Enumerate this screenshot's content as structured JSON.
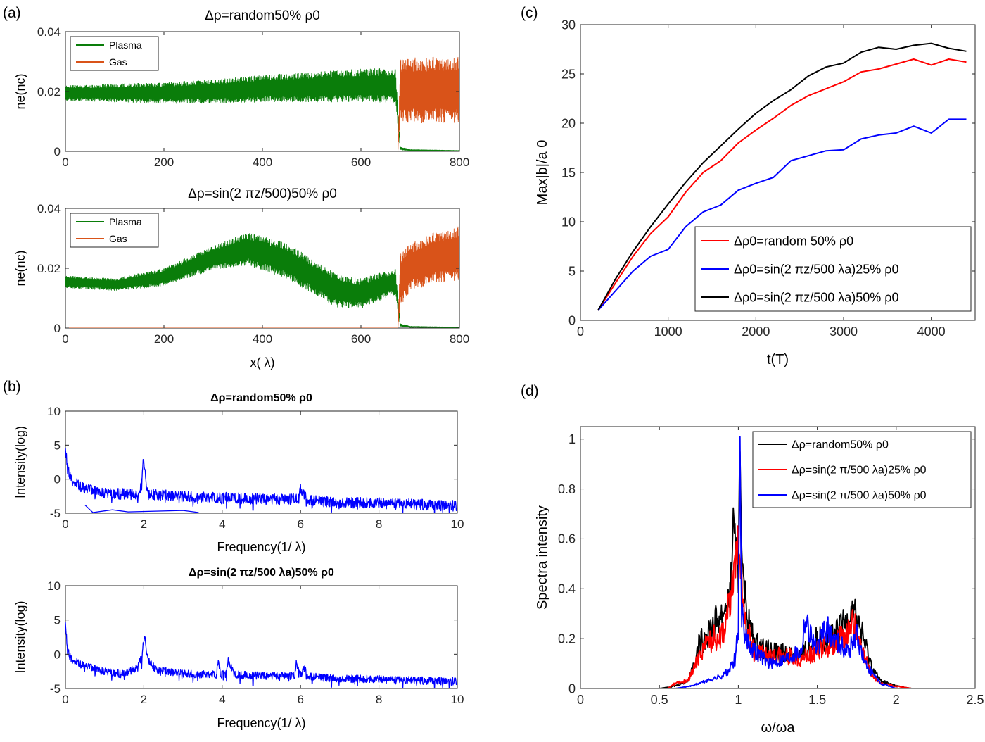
{
  "panel_labels": [
    "(a)",
    "(b)",
    "(c)",
    "(d)"
  ],
  "chart_data": [
    {
      "id": "a1",
      "type": "line",
      "title": "Δρ=random50%   ρ0",
      "xlabel": "",
      "ylabel": "ne(nc)",
      "xlim": [
        0,
        800
      ],
      "ylim": [
        0,
        0.04
      ],
      "xticks": [
        "0",
        "200",
        "400",
        "600",
        "800"
      ],
      "yticks": [
        "0",
        "0.02",
        "0.04"
      ],
      "legend": {
        "position": "top-left",
        "entries": [
          "Plasma",
          "Gas"
        ]
      },
      "series": [
        {
          "name": "Plasma",
          "color": "#0a7d0a",
          "x": [
            0,
            100,
            200,
            300,
            400,
            500,
            600,
            670,
            680,
            700,
            800
          ],
          "y_mid": [
            0.0195,
            0.0195,
            0.0195,
            0.02,
            0.021,
            0.0215,
            0.022,
            0.022,
            0.001,
            0.0004,
            0.0002
          ],
          "y_half_range": [
            0.0025,
            0.003,
            0.0035,
            0.004,
            0.0045,
            0.005,
            0.0055,
            0.0058,
            0.0005,
            0.0002,
            0.0001
          ]
        },
        {
          "name": "Gas",
          "color": "#d95319",
          "x": [
            0,
            675,
            680,
            700,
            800
          ],
          "y_mid": [
            0,
            0,
            0.0205,
            0.0205,
            0.0205
          ],
          "y_half_range": [
            0,
            0,
            0.0105,
            0.011,
            0.011
          ]
        }
      ]
    },
    {
      "id": "a2",
      "type": "line",
      "title": "Δρ=sin(2  πz/500)50%  ρ0",
      "xlabel": "x( λ)",
      "ylabel": "ne(nc)",
      "xlim": [
        0,
        800
      ],
      "ylim": [
        0,
        0.04
      ],
      "xticks": [
        "0",
        "200",
        "400",
        "600",
        "800"
      ],
      "yticks": [
        "0",
        "0.02",
        "0.04"
      ],
      "legend": {
        "position": "top-left",
        "entries": [
          "Plasma",
          "Gas"
        ]
      },
      "series": [
        {
          "name": "Plasma",
          "color": "#0a7d0a",
          "x": [
            0,
            100,
            200,
            300,
            370,
            450,
            550,
            600,
            650,
            670,
            680,
            700,
            800
          ],
          "y_mid": [
            0.0155,
            0.0145,
            0.017,
            0.0235,
            0.0265,
            0.0225,
            0.0125,
            0.0115,
            0.0145,
            0.0155,
            0.001,
            0.0004,
            0.0002
          ],
          "y_half_range": [
            0.002,
            0.002,
            0.003,
            0.004,
            0.0055,
            0.006,
            0.0055,
            0.005,
            0.0045,
            0.0045,
            0.0005,
            0.0002,
            0.0001
          ]
        },
        {
          "name": "Gas",
          "color": "#d95319",
          "x": [
            0,
            675,
            680,
            700,
            750,
            800
          ],
          "y_mid": [
            0,
            0,
            0.016,
            0.0205,
            0.0235,
            0.025
          ],
          "y_half_range": [
            0,
            0,
            0.009,
            0.008,
            0.0085,
            0.009
          ]
        }
      ]
    },
    {
      "id": "b1",
      "type": "line",
      "title": "Δρ=random50%   ρ0",
      "xlabel": "Frequency(1/   λ)",
      "ylabel": "Intensity(log)",
      "xlim": [
        0,
        10
      ],
      "ylim": [
        -5,
        10
      ],
      "xticks": [
        "0",
        "2",
        "4",
        "6",
        "8",
        "10"
      ],
      "yticks": [
        "-5",
        "0",
        "5",
        "10"
      ],
      "series": [
        {
          "name": "",
          "color": "#0000ff",
          "x": [
            0,
            0.05,
            0.2,
            0.5,
            1,
            1.9,
            2.0,
            2.1,
            3,
            4,
            5,
            5.9,
            6.0,
            6.2,
            7,
            8,
            9,
            10
          ],
          "y": [
            4.8,
            1.5,
            -0.5,
            -1.5,
            -2.2,
            -2.3,
            3.0,
            -2.3,
            -2.6,
            -2.8,
            -3.0,
            -3.0,
            -1.5,
            -3.2,
            -3.5,
            -3.6,
            -3.8,
            -4.0
          ],
          "noise": 1.0
        },
        {
          "name": "",
          "color": "#0000ff",
          "x": [
            0.5,
            0.7,
            1.2,
            1.6,
            3.0,
            3.4
          ],
          "y": [
            -3.8,
            -4.9,
            -4.5,
            -4.8,
            -4.6,
            -4.9
          ],
          "noise": 0
        }
      ]
    },
    {
      "id": "b2",
      "type": "line",
      "title": "Δρ=sin(2  πz/500  λa)50%  ρ0",
      "xlabel": "Frequency(1/   λ)",
      "ylabel": "Intensity(log)",
      "xlim": [
        0,
        10
      ],
      "ylim": [
        -5,
        10
      ],
      "xticks": [
        "0",
        "2",
        "4",
        "6",
        "8",
        "10"
      ],
      "yticks": [
        "-5",
        "0",
        "5",
        "10"
      ],
      "series": [
        {
          "name": "",
          "color": "#0000ff",
          "x": [
            0,
            0.05,
            0.2,
            0.5,
            1.0,
            1.5,
            1.8,
            1.95,
            2.02,
            2.1,
            2.3,
            3.0,
            3.85,
            3.9,
            3.95,
            4.1,
            4.15,
            4.3,
            5.0,
            5.85,
            5.9,
            6.0,
            6.1,
            6.2,
            7,
            8,
            9,
            10
          ],
          "y": [
            4.8,
            0.5,
            -1.0,
            -1.8,
            -2.6,
            -3.0,
            -2.0,
            -0.5,
            3.0,
            -0.8,
            -2.3,
            -2.9,
            -3.0,
            -0.7,
            -2.8,
            -3.0,
            -0.9,
            -3.0,
            -3.2,
            -3.2,
            -1.0,
            -3.0,
            -2.0,
            -3.3,
            -3.6,
            -3.7,
            -3.9,
            -4.0
          ],
          "noise": 0.7
        }
      ]
    },
    {
      "id": "c",
      "type": "line",
      "title": "",
      "xlabel": "t(T)",
      "ylabel": "Max|b|/a 0",
      "xlim": [
        0,
        4500
      ],
      "ylim": [
        0,
        30
      ],
      "xticks": [
        "0",
        "1000",
        "2000",
        "3000",
        "4000"
      ],
      "yticks": [
        "0",
        "5",
        "10",
        "15",
        "20",
        "25",
        "30"
      ],
      "legend": {
        "position": "bottom-right",
        "entries": [
          "Δρ0=random 50%    ρ0",
          "Δρ0=sin(2   πz/500  λa)25% ρ0",
          "Δρ0=sin(2   πz/500  λa)50% ρ0"
        ]
      },
      "series": [
        {
          "name": "Δρ0=random 50%    ρ0",
          "color": "#ff0000",
          "x": [
            200,
            400,
            600,
            800,
            1000,
            1200,
            1400,
            1600,
            1800,
            2000,
            2200,
            2400,
            2600,
            2800,
            3000,
            3200,
            3400,
            3600,
            3800,
            4000,
            4200,
            4400
          ],
          "y": [
            1.0,
            3.8,
            6.5,
            8.8,
            10.5,
            13.0,
            15.0,
            16.2,
            18.0,
            19.3,
            20.5,
            21.8,
            22.8,
            23.5,
            24.2,
            25.2,
            25.5,
            26.0,
            26.5,
            25.9,
            26.5,
            26.2
          ]
        },
        {
          "name": "Δρ0=sin(2   πz/500  λa)25% ρ0",
          "color": "#0000ff",
          "x": [
            200,
            400,
            600,
            800,
            1000,
            1200,
            1400,
            1600,
            1800,
            2000,
            2200,
            2400,
            2600,
            2800,
            3000,
            3200,
            3400,
            3600,
            3800,
            4000,
            4200,
            4400
          ],
          "y": [
            1.0,
            3.0,
            5.0,
            6.5,
            7.2,
            9.5,
            11.0,
            11.7,
            13.2,
            13.9,
            14.5,
            16.2,
            16.7,
            17.2,
            17.3,
            18.4,
            18.8,
            19.0,
            19.7,
            19.0,
            20.4,
            20.4
          ]
        },
        {
          "name": "Δρ0=sin(2   πz/500  λa)50% ρ0",
          "color": "#000000",
          "x": [
            200,
            400,
            600,
            800,
            1000,
            1200,
            1400,
            1600,
            1800,
            2000,
            2200,
            2400,
            2600,
            2800,
            3000,
            3200,
            3400,
            3600,
            3800,
            4000,
            4200,
            4400
          ],
          "y": [
            1.0,
            4.2,
            7.0,
            9.5,
            11.8,
            14.0,
            16.0,
            17.7,
            19.4,
            21.0,
            22.3,
            23.4,
            24.8,
            25.7,
            26.1,
            27.2,
            27.7,
            27.5,
            27.9,
            28.1,
            27.6,
            27.3
          ]
        }
      ]
    },
    {
      "id": "d",
      "type": "line",
      "title": "",
      "xlabel": "ω/ωa",
      "ylabel": "Spectra intensity",
      "xlim": [
        0,
        2.5
      ],
      "ylim": [
        0,
        1.05
      ],
      "xticks": [
        "0",
        "0.5",
        "1",
        "1.5",
        "2",
        "2.5"
      ],
      "yticks": [
        "0",
        "0.2",
        "0.4",
        "0.6",
        "0.8",
        "1"
      ],
      "legend": {
        "position": "top-right",
        "entries": [
          "Δρ=random50%   ρ0",
          "Δρ=sin(2  π/500 λa)25% ρ0",
          "Δρ=sin(2  π/500 λa)50% ρ0"
        ]
      },
      "series": [
        {
          "name": "Δρ=random50%   ρ0",
          "color": "#000000",
          "x": [
            0,
            0.5,
            0.6,
            0.68,
            0.72,
            0.75,
            0.8,
            0.85,
            0.9,
            0.95,
            0.97,
            1.0,
            1.01,
            1.02,
            1.05,
            1.1,
            1.2,
            1.3,
            1.4,
            1.5,
            1.6,
            1.7,
            1.72,
            1.75,
            1.8,
            1.85,
            1.9,
            2.0,
            2.1,
            2.5
          ],
          "y": [
            0,
            0,
            0.01,
            0.03,
            0.1,
            0.17,
            0.22,
            0.26,
            0.3,
            0.38,
            0.7,
            0.45,
            1.0,
            0.6,
            0.3,
            0.18,
            0.15,
            0.14,
            0.13,
            0.2,
            0.2,
            0.28,
            0.33,
            0.28,
            0.18,
            0.08,
            0.03,
            0.01,
            0,
            0
          ],
          "noise": 0.07
        },
        {
          "name": "Δρ=sin(2  π/500 λa)25% ρ0",
          "color": "#ff0000",
          "x": [
            0,
            0.55,
            0.6,
            0.68,
            0.72,
            0.75,
            0.8,
            0.85,
            0.9,
            0.95,
            0.98,
            1.0,
            1.02,
            1.05,
            1.1,
            1.2,
            1.3,
            1.4,
            1.5,
            1.6,
            1.7,
            1.72,
            1.75,
            1.8,
            1.85,
            1.9,
            2.0,
            2.1,
            2.5
          ],
          "y": [
            0,
            0,
            0.02,
            0.03,
            0.08,
            0.13,
            0.18,
            0.2,
            0.22,
            0.35,
            0.5,
            0.6,
            0.45,
            0.25,
            0.15,
            0.13,
            0.13,
            0.12,
            0.15,
            0.18,
            0.22,
            0.3,
            0.2,
            0.12,
            0.05,
            0.02,
            0.01,
            0,
            0
          ],
          "noise": 0.07
        },
        {
          "name": "Δρ=sin(2  π/500 λa)50% ρ0",
          "color": "#0000ff",
          "x": [
            0,
            0.6,
            0.7,
            0.8,
            0.9,
            0.95,
            0.98,
            1.0,
            1.01,
            1.02,
            1.05,
            1.1,
            1.2,
            1.3,
            1.4,
            1.42,
            1.5,
            1.55,
            1.6,
            1.7,
            1.75,
            1.8,
            1.9,
            2.0,
            2.5
          ],
          "y": [
            0,
            0,
            0.01,
            0.03,
            0.05,
            0.08,
            0.12,
            0.25,
            1.0,
            0.3,
            0.2,
            0.15,
            0.1,
            0.12,
            0.15,
            0.28,
            0.15,
            0.25,
            0.2,
            0.15,
            0.22,
            0.1,
            0.02,
            0,
            0
          ],
          "noise": 0.06
        }
      ]
    }
  ]
}
